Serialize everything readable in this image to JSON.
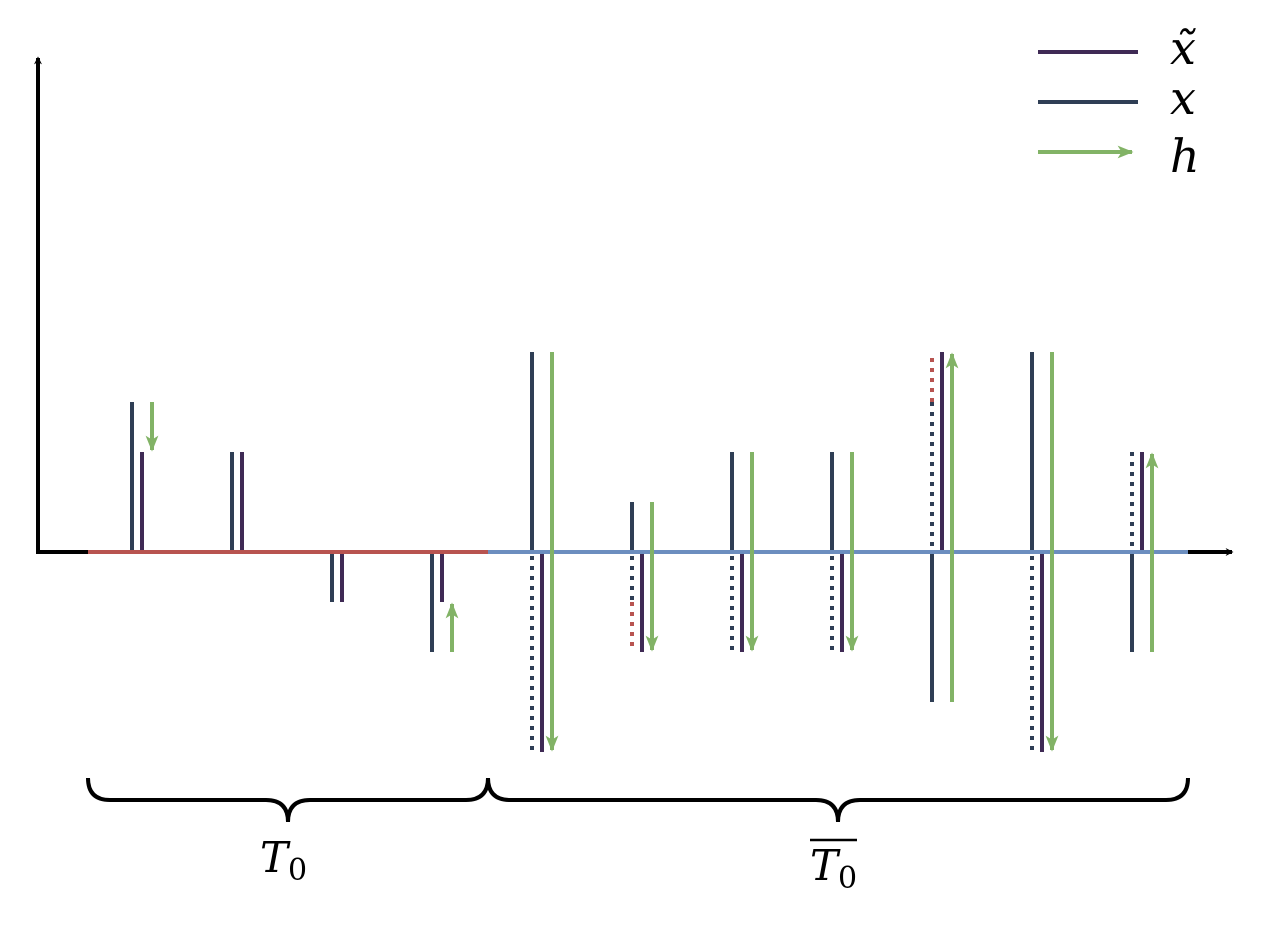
{
  "legend": {
    "items": [
      "x̃",
      "x",
      "h"
    ]
  },
  "braces": [
    {
      "main": "T",
      "sub": "0"
    },
    {
      "main": "T",
      "sub": "0"
    }
  ]
}
